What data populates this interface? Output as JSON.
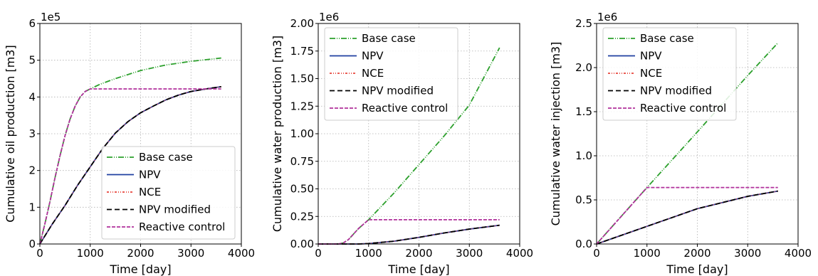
{
  "chart_data": [
    {
      "type": "line",
      "xlabel": "Time [day]",
      "ylabel": "Cumulative oil production [m3]",
      "offset_text": "1e5",
      "xlim": [
        0,
        4000
      ],
      "ylim": [
        0,
        6
      ],
      "xticks": [
        "0",
        "1000",
        "2000",
        "3000",
        "4000"
      ],
      "yticks": [
        "0",
        "1",
        "2",
        "3",
        "4",
        "5",
        "6"
      ],
      "grid": true,
      "legend_position": "lower-right",
      "series": [
        {
          "name": "Base case",
          "color": "#2ca02c",
          "dash": "8 2 1 2 1 2",
          "x": [
            0,
            100,
            200,
            300,
            400,
            500,
            600,
            700,
            800,
            900,
            1000,
            1200,
            1500,
            2000,
            2500,
            3000,
            3600
          ],
          "y": [
            0,
            0.55,
            1.15,
            1.8,
            2.4,
            2.95,
            3.4,
            3.75,
            4.0,
            4.15,
            4.22,
            4.35,
            4.5,
            4.72,
            4.87,
            4.97,
            5.06
          ]
        },
        {
          "name": "NPV",
          "color": "#1f3fa0",
          "dash": "",
          "x": [
            0,
            250,
            500,
            750,
            1000,
            1250,
            1500,
            1750,
            2000,
            2250,
            2500,
            2750,
            3000,
            3300,
            3600
          ],
          "y": [
            0,
            0.55,
            1.05,
            1.6,
            2.1,
            2.6,
            3.02,
            3.33,
            3.57,
            3.75,
            3.92,
            4.05,
            4.15,
            4.22,
            4.28
          ]
        },
        {
          "name": "NCE",
          "color": "#e8453c",
          "dash": "3 2 1 2 1 2",
          "x": [
            0,
            250,
            500,
            750,
            1000,
            1250,
            1500,
            1750,
            2000,
            2250,
            2500,
            2750,
            3000,
            3300,
            3600
          ],
          "y": [
            0,
            0.55,
            1.05,
            1.6,
            2.1,
            2.6,
            3.02,
            3.33,
            3.57,
            3.75,
            3.92,
            4.05,
            4.15,
            4.22,
            4.28
          ]
        },
        {
          "name": "NPV modified",
          "color": "#000000",
          "dash": "7 4",
          "x": [
            0,
            250,
            500,
            750,
            1000,
            1250,
            1500,
            1750,
            2000,
            2250,
            2500,
            2750,
            3000,
            3300,
            3600
          ],
          "y": [
            0,
            0.55,
            1.05,
            1.6,
            2.1,
            2.6,
            3.02,
            3.33,
            3.57,
            3.75,
            3.92,
            4.05,
            4.15,
            4.22,
            4.28
          ]
        },
        {
          "name": "Reactive control",
          "color": "#b0309b",
          "dash": "5 2",
          "x": [
            0,
            100,
            200,
            300,
            400,
            500,
            600,
            700,
            800,
            900,
            1000,
            3600
          ],
          "y": [
            0,
            0.55,
            1.15,
            1.8,
            2.4,
            2.95,
            3.4,
            3.75,
            4.0,
            4.15,
            4.22,
            4.22
          ]
        }
      ]
    },
    {
      "type": "line",
      "xlabel": "Time [day]",
      "ylabel": "Cumulative water production [m3]",
      "offset_text": "1e6",
      "xlim": [
        0,
        4000
      ],
      "ylim": [
        0,
        2.0
      ],
      "xticks": [
        "0",
        "1000",
        "2000",
        "3000",
        "4000"
      ],
      "yticks": [
        "0.00",
        "0.25",
        "0.50",
        "0.75",
        "1.00",
        "1.25",
        "1.50",
        "1.75",
        "2.00"
      ],
      "grid": true,
      "legend_position": "upper-left",
      "series": [
        {
          "name": "Base case",
          "color": "#2ca02c",
          "dash": "8 2 1 2 1 2",
          "x": [
            0,
            400,
            500,
            600,
            700,
            800,
            900,
            1000,
            1500,
            2000,
            2500,
            3000,
            3600
          ],
          "y": [
            0,
            0,
            0.01,
            0.04,
            0.09,
            0.14,
            0.18,
            0.22,
            0.46,
            0.72,
            0.98,
            1.26,
            1.78
          ]
        },
        {
          "name": "NPV",
          "color": "#1f3fa0",
          "dash": "",
          "x": [
            0,
            800,
            1000,
            1500,
            2000,
            2500,
            3000,
            3600
          ],
          "y": [
            0,
            0,
            0.004,
            0.025,
            0.06,
            0.1,
            0.135,
            0.17
          ]
        },
        {
          "name": "NCE",
          "color": "#e8453c",
          "dash": "3 2 1 2 1 2",
          "x": [
            0,
            800,
            1000,
            1500,
            2000,
            2500,
            3000,
            3600
          ],
          "y": [
            0,
            0,
            0.004,
            0.025,
            0.06,
            0.1,
            0.135,
            0.17
          ]
        },
        {
          "name": "NPV modified",
          "color": "#000000",
          "dash": "7 4",
          "x": [
            0,
            800,
            1000,
            1500,
            2000,
            2500,
            3000,
            3600
          ],
          "y": [
            0,
            0,
            0.004,
            0.025,
            0.06,
            0.1,
            0.135,
            0.17
          ]
        },
        {
          "name": "Reactive control",
          "color": "#b0309b",
          "dash": "5 2",
          "x": [
            0,
            400,
            500,
            600,
            700,
            800,
            900,
            1000,
            3600
          ],
          "y": [
            0,
            0,
            0.01,
            0.04,
            0.09,
            0.14,
            0.18,
            0.22,
            0.22
          ]
        }
      ]
    },
    {
      "type": "line",
      "xlabel": "Time [day]",
      "ylabel": "Cumulative water injection [m3]",
      "offset_text": "1e6",
      "xlim": [
        0,
        4000
      ],
      "ylim": [
        0,
        2.5
      ],
      "xticks": [
        "0",
        "1000",
        "2000",
        "3000",
        "4000"
      ],
      "yticks": [
        "0.0",
        "0.5",
        "1.0",
        "1.5",
        "2.0",
        "2.5"
      ],
      "grid": true,
      "legend_position": "upper-left",
      "series": [
        {
          "name": "Base case",
          "color": "#2ca02c",
          "dash": "8 2 1 2 1 2",
          "x": [
            0,
            1000,
            2000,
            3000,
            3600
          ],
          "y": [
            0,
            0.64,
            1.27,
            1.91,
            2.28
          ]
        },
        {
          "name": "NPV",
          "color": "#1f3fa0",
          "dash": "",
          "x": [
            0,
            500,
            1000,
            1500,
            2000,
            2500,
            3000,
            3600
          ],
          "y": [
            0,
            0.1,
            0.2,
            0.3,
            0.4,
            0.47,
            0.54,
            0.6
          ]
        },
        {
          "name": "NCE",
          "color": "#e8453c",
          "dash": "3 2 1 2 1 2",
          "x": [
            0,
            500,
            1000,
            1500,
            2000,
            2500,
            3000,
            3600
          ],
          "y": [
            0,
            0.1,
            0.2,
            0.3,
            0.4,
            0.47,
            0.54,
            0.6
          ]
        },
        {
          "name": "NPV modified",
          "color": "#000000",
          "dash": "7 4",
          "x": [
            0,
            500,
            1000,
            1500,
            2000,
            2500,
            3000,
            3600
          ],
          "y": [
            0,
            0.1,
            0.2,
            0.3,
            0.4,
            0.47,
            0.54,
            0.6
          ]
        },
        {
          "name": "Reactive control",
          "color": "#b0309b",
          "dash": "5 2",
          "x": [
            0,
            1000,
            3600
          ],
          "y": [
            0,
            0.64,
            0.64
          ]
        }
      ]
    }
  ]
}
